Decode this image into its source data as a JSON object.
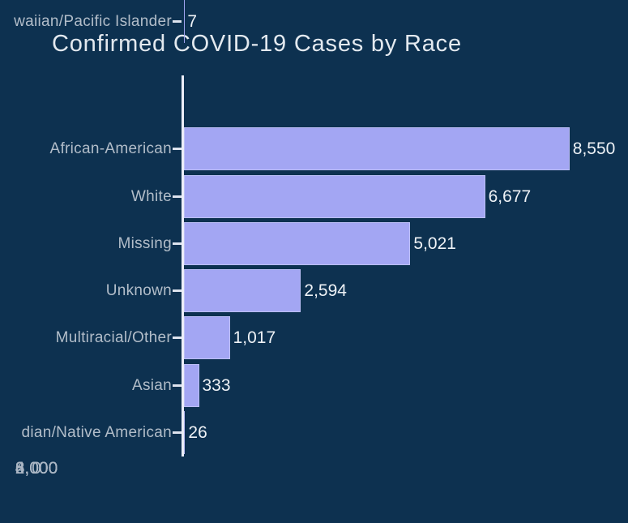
{
  "chart_data": {
    "type": "bar",
    "orientation": "horizontal",
    "title": "Confirmed COVID-19 Cases by Race",
    "categories": [
      "African-American",
      "White",
      "Missing",
      "Unknown",
      "Multiracial/Other",
      "Asian",
      "dian/Native American",
      "waiian/Pacific Islander"
    ],
    "values": [
      8550,
      6677,
      5021,
      2594,
      1017,
      333,
      26,
      7
    ],
    "value_labels": [
      "8,550",
      "6,677",
      "5,021",
      "2,594",
      "1,017",
      "333",
      "26",
      "7"
    ],
    "x_tick_values": [
      0,
      2000,
      4000,
      6000,
      8000
    ],
    "x_tick_labels": [
      "0",
      "2,000",
      "4,000",
      "6,000",
      "8,000"
    ],
    "xlim": [
      0,
      9850
    ],
    "grid": false,
    "legend": false,
    "colors": {
      "background": "#0d3150",
      "bar_fill": "#a3a6f3",
      "axis_line": "#eceef8",
      "title_text": "#e3e9ef",
      "category_text": "#b2bdc9",
      "tick_text": "#aab6c4",
      "value_text": "#eef2f6"
    }
  }
}
